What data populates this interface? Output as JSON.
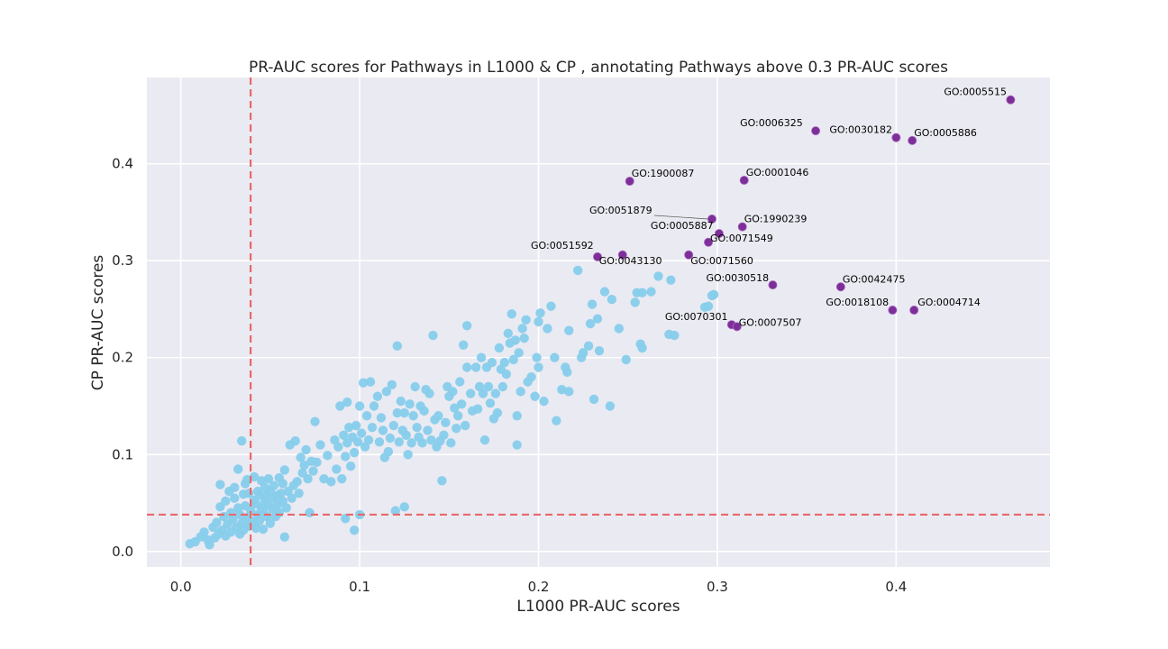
{
  "chart_data": {
    "type": "scatter",
    "title": "PR-AUC scores for Pathways in L1000 & CP , annotating Pathways above 0.3 PR-AUC scores",
    "xlabel": "L1000 PR-AUC scores",
    "ylabel": "CP PR-AUC scores",
    "xlim": [
      -0.019,
      0.486
    ],
    "ylim": [
      -0.016,
      0.489
    ],
    "xticks": [
      0.0,
      0.1,
      0.2,
      0.3,
      0.4
    ],
    "yticks": [
      0.0,
      0.1,
      0.2,
      0.3,
      0.4
    ],
    "xtick_labels": [
      "0.0",
      "0.1",
      "0.2",
      "0.3",
      "0.4"
    ],
    "ytick_labels": [
      "0.0",
      "0.1",
      "0.2",
      "0.3",
      "0.4"
    ],
    "grid": true,
    "background_color": "#eaeaf2",
    "threshold_lines": {
      "x": 0.039,
      "y": 0.038,
      "color": "#e8686a"
    },
    "series": [
      {
        "role": "below-threshold",
        "color": "#87ceeb",
        "points": [
          [
            0.005,
            0.008
          ],
          [
            0.008,
            0.01
          ],
          [
            0.011,
            0.015
          ],
          [
            0.013,
            0.02
          ],
          [
            0.015,
            0.012
          ],
          [
            0.016,
            0.007
          ],
          [
            0.018,
            0.025
          ],
          [
            0.019,
            0.014
          ],
          [
            0.02,
            0.03
          ],
          [
            0.021,
            0.018
          ],
          [
            0.022,
            0.046
          ],
          [
            0.022,
            0.069
          ],
          [
            0.023,
            0.022
          ],
          [
            0.024,
            0.036
          ],
          [
            0.025,
            0.052
          ],
          [
            0.025,
            0.016
          ],
          [
            0.026,
            0.028
          ],
          [
            0.027,
            0.062
          ],
          [
            0.028,
            0.04
          ],
          [
            0.028,
            0.02
          ],
          [
            0.029,
            0.033
          ],
          [
            0.03,
            0.055
          ],
          [
            0.03,
            0.066
          ],
          [
            0.031,
            0.025
          ],
          [
            0.032,
            0.085
          ],
          [
            0.032,
            0.045
          ],
          [
            0.033,
            0.038
          ],
          [
            0.033,
            0.018
          ],
          [
            0.034,
            0.114
          ],
          [
            0.034,
            0.029
          ],
          [
            0.035,
            0.059
          ],
          [
            0.035,
            0.022
          ],
          [
            0.036,
            0.07
          ],
          [
            0.036,
            0.047
          ],
          [
            0.037,
            0.074
          ],
          [
            0.037,
            0.035
          ],
          [
            0.038,
            0.026
          ],
          [
            0.038,
            0.06
          ],
          [
            0.039,
            0.042
          ],
          [
            0.04,
            0.031
          ],
          [
            0.041,
            0.053
          ],
          [
            0.041,
            0.077
          ],
          [
            0.042,
            0.024
          ],
          [
            0.042,
            0.049
          ],
          [
            0.043,
            0.038
          ],
          [
            0.043,
            0.062
          ],
          [
            0.044,
            0.058
          ],
          [
            0.044,
            0.032
          ],
          [
            0.045,
            0.045
          ],
          [
            0.045,
            0.073
          ],
          [
            0.046,
            0.041
          ],
          [
            0.046,
            0.023
          ],
          [
            0.047,
            0.052
          ],
          [
            0.047,
            0.066
          ],
          [
            0.048,
            0.036
          ],
          [
            0.048,
            0.058
          ],
          [
            0.049,
            0.048
          ],
          [
            0.049,
            0.075
          ],
          [
            0.05,
            0.029
          ],
          [
            0.05,
            0.062
          ],
          [
            0.051,
            0.044
          ],
          [
            0.052,
            0.055
          ],
          [
            0.052,
            0.068
          ],
          [
            0.053,
            0.036
          ],
          [
            0.054,
            0.058
          ],
          [
            0.054,
            0.048
          ],
          [
            0.055,
            0.076
          ],
          [
            0.055,
            0.04
          ],
          [
            0.056,
            0.06
          ],
          [
            0.057,
            0.052
          ],
          [
            0.057,
            0.07
          ],
          [
            0.058,
            0.015
          ],
          [
            0.058,
            0.084
          ],
          [
            0.059,
            0.045
          ],
          [
            0.06,
            0.062
          ],
          [
            0.061,
            0.11
          ],
          [
            0.062,
            0.055
          ],
          [
            0.063,
            0.068
          ],
          [
            0.064,
            0.114
          ],
          [
            0.065,
            0.072
          ],
          [
            0.066,
            0.06
          ],
          [
            0.067,
            0.097
          ],
          [
            0.068,
            0.081
          ],
          [
            0.069,
            0.089
          ],
          [
            0.07,
            0.105
          ],
          [
            0.071,
            0.075
          ],
          [
            0.072,
            0.04
          ],
          [
            0.073,
            0.093
          ],
          [
            0.074,
            0.083
          ],
          [
            0.075,
            0.134
          ],
          [
            0.076,
            0.092
          ],
          [
            0.078,
            0.11
          ],
          [
            0.08,
            0.075
          ],
          [
            0.082,
            0.099
          ],
          [
            0.084,
            0.072
          ],
          [
            0.086,
            0.115
          ],
          [
            0.087,
            0.085
          ],
          [
            0.088,
            0.108
          ],
          [
            0.089,
            0.15
          ],
          [
            0.09,
            0.075
          ],
          [
            0.091,
            0.12
          ],
          [
            0.092,
            0.034
          ],
          [
            0.092,
            0.098
          ],
          [
            0.093,
            0.112
          ],
          [
            0.093,
            0.154
          ],
          [
            0.094,
            0.128
          ],
          [
            0.095,
            0.088
          ],
          [
            0.096,
            0.118
          ],
          [
            0.097,
            0.102
          ],
          [
            0.097,
            0.022
          ],
          [
            0.098,
            0.13
          ],
          [
            0.099,
            0.113
          ],
          [
            0.1,
            0.038
          ],
          [
            0.1,
            0.15
          ],
          [
            0.101,
            0.122
          ],
          [
            0.102,
            0.174
          ],
          [
            0.103,
            0.108
          ],
          [
            0.104,
            0.14
          ],
          [
            0.105,
            0.115
          ],
          [
            0.106,
            0.175
          ],
          [
            0.107,
            0.128
          ],
          [
            0.108,
            0.15
          ],
          [
            0.11,
            0.16
          ],
          [
            0.111,
            0.113
          ],
          [
            0.112,
            0.138
          ],
          [
            0.113,
            0.125
          ],
          [
            0.114,
            0.097
          ],
          [
            0.115,
            0.165
          ],
          [
            0.116,
            0.103
          ],
          [
            0.117,
            0.117
          ],
          [
            0.118,
            0.172
          ],
          [
            0.119,
            0.13
          ],
          [
            0.12,
            0.042
          ],
          [
            0.121,
            0.143
          ],
          [
            0.121,
            0.212
          ],
          [
            0.122,
            0.113
          ],
          [
            0.123,
            0.155
          ],
          [
            0.124,
            0.125
          ],
          [
            0.125,
            0.046
          ],
          [
            0.125,
            0.143
          ],
          [
            0.126,
            0.12
          ],
          [
            0.127,
            0.1
          ],
          [
            0.128,
            0.152
          ],
          [
            0.129,
            0.112
          ],
          [
            0.13,
            0.14
          ],
          [
            0.131,
            0.17
          ],
          [
            0.132,
            0.128
          ],
          [
            0.133,
            0.118
          ],
          [
            0.134,
            0.15
          ],
          [
            0.135,
            0.112
          ],
          [
            0.136,
            0.145
          ],
          [
            0.137,
            0.167
          ],
          [
            0.138,
            0.125
          ],
          [
            0.139,
            0.163
          ],
          [
            0.14,
            0.115
          ],
          [
            0.141,
            0.223
          ],
          [
            0.142,
            0.136
          ],
          [
            0.143,
            0.108
          ],
          [
            0.144,
            0.14
          ],
          [
            0.145,
            0.114
          ],
          [
            0.146,
            0.073
          ],
          [
            0.147,
            0.12
          ],
          [
            0.148,
            0.133
          ],
          [
            0.149,
            0.17
          ],
          [
            0.15,
            0.16
          ],
          [
            0.151,
            0.112
          ],
          [
            0.152,
            0.165
          ],
          [
            0.153,
            0.148
          ],
          [
            0.154,
            0.127
          ],
          [
            0.155,
            0.14
          ],
          [
            0.156,
            0.175
          ],
          [
            0.157,
            0.152
          ],
          [
            0.158,
            0.213
          ],
          [
            0.159,
            0.13
          ],
          [
            0.16,
            0.19
          ],
          [
            0.16,
            0.233
          ],
          [
            0.162,
            0.163
          ],
          [
            0.163,
            0.145
          ],
          [
            0.165,
            0.19
          ],
          [
            0.166,
            0.147
          ],
          [
            0.167,
            0.17
          ],
          [
            0.168,
            0.2
          ],
          [
            0.169,
            0.163
          ],
          [
            0.17,
            0.115
          ],
          [
            0.171,
            0.19
          ],
          [
            0.172,
            0.17
          ],
          [
            0.173,
            0.153
          ],
          [
            0.174,
            0.195
          ],
          [
            0.175,
            0.137
          ],
          [
            0.176,
            0.163
          ],
          [
            0.177,
            0.143
          ],
          [
            0.178,
            0.21
          ],
          [
            0.179,
            0.188
          ],
          [
            0.18,
            0.17
          ],
          [
            0.181,
            0.195
          ],
          [
            0.182,
            0.183
          ],
          [
            0.183,
            0.225
          ],
          [
            0.184,
            0.215
          ],
          [
            0.185,
            0.245
          ],
          [
            0.186,
            0.198
          ],
          [
            0.187,
            0.218
          ],
          [
            0.188,
            0.11
          ],
          [
            0.188,
            0.14
          ],
          [
            0.189,
            0.205
          ],
          [
            0.19,
            0.165
          ],
          [
            0.191,
            0.23
          ],
          [
            0.192,
            0.22
          ],
          [
            0.193,
            0.239
          ],
          [
            0.194,
            0.175
          ],
          [
            0.196,
            0.18
          ],
          [
            0.198,
            0.16
          ],
          [
            0.199,
            0.2
          ],
          [
            0.2,
            0.19
          ],
          [
            0.2,
            0.237
          ],
          [
            0.201,
            0.246
          ],
          [
            0.203,
            0.155
          ],
          [
            0.205,
            0.23
          ],
          [
            0.207,
            0.253
          ],
          [
            0.209,
            0.2
          ],
          [
            0.21,
            0.135
          ],
          [
            0.213,
            0.167
          ],
          [
            0.215,
            0.19
          ],
          [
            0.216,
            0.185
          ],
          [
            0.217,
            0.165
          ],
          [
            0.217,
            0.228
          ],
          [
            0.222,
            0.29
          ],
          [
            0.224,
            0.2
          ],
          [
            0.225,
            0.205
          ],
          [
            0.228,
            0.212
          ],
          [
            0.229,
            0.235
          ],
          [
            0.23,
            0.255
          ],
          [
            0.231,
            0.157
          ],
          [
            0.233,
            0.24
          ],
          [
            0.234,
            0.207
          ],
          [
            0.237,
            0.268
          ],
          [
            0.24,
            0.15
          ],
          [
            0.241,
            0.26
          ],
          [
            0.245,
            0.23
          ],
          [
            0.249,
            0.198
          ],
          [
            0.254,
            0.257
          ],
          [
            0.255,
            0.267
          ],
          [
            0.257,
            0.214
          ],
          [
            0.258,
            0.21
          ],
          [
            0.258,
            0.267
          ],
          [
            0.263,
            0.268
          ],
          [
            0.267,
            0.284
          ],
          [
            0.273,
            0.224
          ],
          [
            0.274,
            0.28
          ],
          [
            0.276,
            0.223
          ],
          [
            0.293,
            0.252
          ],
          [
            0.295,
            0.253
          ],
          [
            0.297,
            0.264
          ],
          [
            0.298,
            0.265
          ]
        ]
      },
      {
        "role": "annotated",
        "color": "#7d2e99",
        "points": [
          {
            "label": "GO:0005515",
            "x": 0.464,
            "y": 0.466
          },
          {
            "label": "GO:0006325",
            "x": 0.355,
            "y": 0.434
          },
          {
            "label": "GO:0030182",
            "x": 0.4,
            "y": 0.427
          },
          {
            "label": "GO:0005886",
            "x": 0.409,
            "y": 0.424
          },
          {
            "label": "GO:1900087",
            "x": 0.251,
            "y": 0.382
          },
          {
            "label": "GO:0001046",
            "x": 0.315,
            "y": 0.383
          },
          {
            "label": "GO:0051879",
            "x": 0.297,
            "y": 0.343
          },
          {
            "label": "GO:1990239",
            "x": 0.314,
            "y": 0.335
          },
          {
            "label": "GO:0005887",
            "x": 0.301,
            "y": 0.328
          },
          {
            "label": "GO:0071549",
            "x": 0.295,
            "y": 0.319
          },
          {
            "label": "GO:0051592",
            "x": 0.233,
            "y": 0.304
          },
          {
            "label": "GO:0043130",
            "x": 0.247,
            "y": 0.306
          },
          {
            "label": "GO:0071560",
            "x": 0.284,
            "y": 0.306
          },
          {
            "label": "GO:0030518",
            "x": 0.331,
            "y": 0.275
          },
          {
            "label": "GO:0042475",
            "x": 0.369,
            "y": 0.273
          },
          {
            "label": "GO:0018108",
            "x": 0.398,
            "y": 0.249
          },
          {
            "label": "GO:0004714",
            "x": 0.41,
            "y": 0.249
          },
          {
            "label": "GO:0070301",
            "x": 0.308,
            "y": 0.234
          },
          {
            "label": "GO:0007507",
            "x": 0.311,
            "y": 0.232
          }
        ]
      }
    ]
  }
}
